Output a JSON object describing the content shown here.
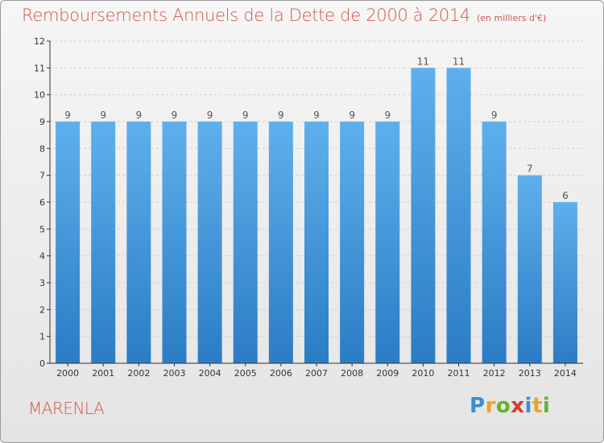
{
  "header": {
    "title": "Remboursements Annuels de la Dette de 2000 à 2014",
    "subtitle": "(en milliers d'€)"
  },
  "footer": {
    "commune": "MARENLA",
    "logo_text": "Proxiti",
    "logo_letters": [
      "P",
      "r",
      "o",
      "x",
      "i",
      "t",
      "i"
    ],
    "logo_colors": [
      "#3a8fd4",
      "#f0a020",
      "#6ab02e",
      "#d63a2a",
      "#3a8fd4",
      "#f0a020",
      "#6ab02e"
    ]
  },
  "colors": {
    "title": "#d4554a",
    "bar_top": "#5eb0ec",
    "bar_bottom": "#2b7cc4",
    "axis": "#333333",
    "grid": "#cfcfcf",
    "label": "#555555"
  },
  "chart_data": {
    "type": "bar",
    "title": "Remboursements Annuels de la Dette de 2000 à 2014",
    "subtitle": "(en milliers d'€)",
    "categories": [
      "2000",
      "2001",
      "2002",
      "2003",
      "2004",
      "2005",
      "2006",
      "2007",
      "2008",
      "2009",
      "2010",
      "2011",
      "2012",
      "2013",
      "2014"
    ],
    "values": [
      9,
      9,
      9,
      9,
      9,
      9,
      9,
      9,
      9,
      9,
      11,
      11,
      9,
      7,
      6
    ],
    "data_labels": [
      "9",
      "9",
      "9",
      "9",
      "9",
      "9",
      "9",
      "9",
      "9",
      "9",
      "11",
      "11",
      "9",
      "7",
      "6"
    ],
    "y_ticks": [
      "0",
      "1",
      "2",
      "3",
      "4",
      "5",
      "6",
      "7",
      "8",
      "9",
      "10",
      "11",
      "12"
    ],
    "ylim": [
      0,
      12
    ],
    "grid": true,
    "legend": false
  }
}
